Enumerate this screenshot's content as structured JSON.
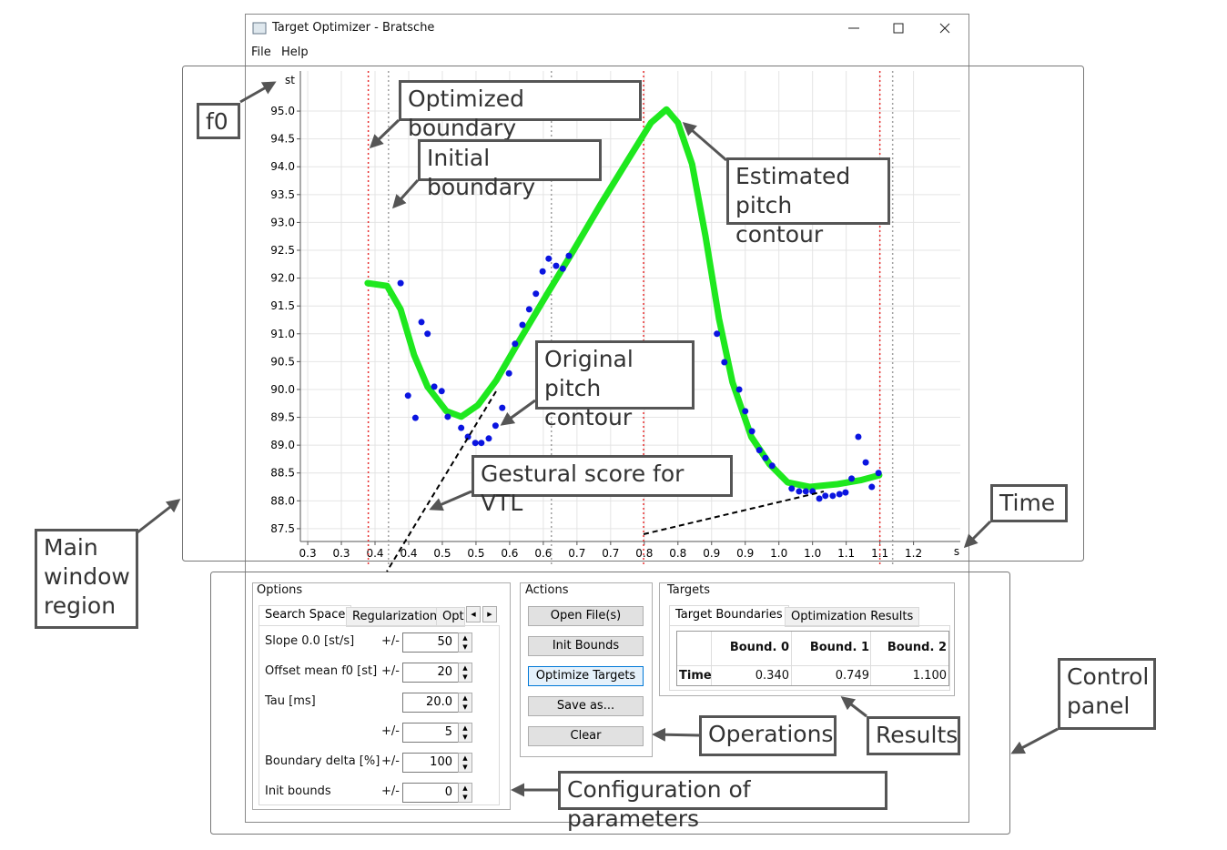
{
  "window": {
    "title": "Target Optimizer - Bratsche",
    "menu": [
      "File",
      "Help"
    ]
  },
  "plot": {
    "y_unit": "st",
    "x_unit": "s",
    "xlim": [
      0.2391,
      1.2195
    ],
    "ylim": [
      87.27,
      95.72
    ],
    "xticks": [
      {
        "value": 0.25,
        "label": "0.3"
      },
      0.3,
      {
        "value": 0.35,
        "label": "0.4"
      },
      0.4,
      {
        "value": 0.45,
        "label": "0.5"
      },
      0.5,
      {
        "value": 0.55,
        "label": "0.6"
      },
      0.6,
      {
        "value": 0.65,
        "label": "0.7"
      },
      0.7,
      {
        "value": 0.75,
        "label": "0.8"
      },
      0.8,
      {
        "value": 0.85,
        "label": "0.9"
      },
      0.9,
      {
        "value": 0.95,
        "label": "1.0"
      },
      {
        "value": 1.0,
        "label": "1.0"
      },
      {
        "value": 1.05,
        "label": "1.1"
      },
      1.1,
      {
        "value": 1.15,
        "label": "1.2"
      }
    ],
    "yticks": [
      87.5,
      {
        "value": 88,
        "label": "88.0"
      },
      88.5,
      {
        "value": 89,
        "label": "89.0"
      },
      89.5,
      {
        "value": 90,
        "label": "90.0"
      },
      90.5,
      {
        "value": 91,
        "label": "91.0"
      },
      91.5,
      {
        "value": 92,
        "label": "92.0"
      },
      92.5,
      {
        "value": 93,
        "label": "93.0"
      },
      93.5,
      {
        "value": 94,
        "label": "94.0"
      },
      94.5,
      {
        "value": 95,
        "label": "95.0"
      }
    ],
    "grid": true,
    "initial_boundaries": [
      0.37,
      0.612,
      1.119
    ],
    "optimized_boundaries": [
      0.34,
      0.749,
      1.1
    ],
    "estimated": {
      "color": "#1ee81e",
      "t": [
        0.339,
        0.368,
        0.388,
        0.408,
        0.428,
        0.456,
        0.478,
        0.503,
        0.53,
        0.564,
        0.604,
        0.645,
        0.685,
        0.726,
        0.76,
        0.783,
        0.8,
        0.821,
        0.841,
        0.861,
        0.881,
        0.909,
        0.936,
        0.963,
        0.996,
        1.037,
        1.071,
        1.099
      ],
      "v": [
        91.91,
        91.86,
        91.44,
        90.62,
        90.05,
        89.61,
        89.51,
        89.72,
        90.16,
        90.87,
        91.68,
        92.5,
        93.32,
        94.13,
        94.79,
        95.03,
        94.79,
        94.05,
        92.75,
        91.27,
        90.13,
        89.15,
        88.66,
        88.33,
        88.25,
        88.3,
        88.37,
        88.46
      ]
    },
    "original": {
      "color": "#0a14e0",
      "t": [
        0.388,
        0.399,
        0.41,
        0.419,
        0.428,
        0.438,
        0.449,
        0.458,
        0.478,
        0.488,
        0.499,
        0.508,
        0.519,
        0.529,
        0.539,
        0.549,
        0.558,
        0.569,
        0.579,
        0.589,
        0.599,
        0.608,
        0.619,
        0.629,
        0.638,
        0.858,
        0.869,
        0.891,
        0.9,
        0.91,
        0.921,
        0.93,
        0.94,
        0.969,
        0.98,
        0.99,
        1.0,
        1.01,
        1.019,
        1.03,
        1.04,
        1.049,
        1.058,
        1.068,
        1.079,
        1.088,
        1.098
      ],
      "v": [
        91.91,
        89.89,
        89.49,
        91.21,
        91.0,
        90.05,
        89.97,
        89.51,
        89.31,
        89.15,
        89.04,
        89.04,
        89.12,
        89.35,
        89.67,
        90.29,
        90.82,
        91.16,
        91.44,
        91.72,
        92.12,
        92.35,
        92.22,
        92.17,
        92.4,
        91.0,
        90.49,
        90.0,
        89.61,
        89.25,
        88.91,
        88.77,
        88.63,
        88.22,
        88.17,
        88.17,
        88.17,
        88.04,
        88.09,
        88.09,
        88.12,
        88.15,
        88.4,
        89.15,
        88.69,
        88.25,
        88.5
      ]
    }
  },
  "options": {
    "title": "Options",
    "tabs": [
      "Search Space",
      "Regularization",
      "Opt"
    ],
    "rows": [
      {
        "label": "Slope 0.0 [st/s]",
        "pm": "+/-",
        "value": "50"
      },
      {
        "label": "Offset mean f0 [st]",
        "pm": "+/-",
        "value": "20"
      },
      {
        "label": "Tau [ms]",
        "value": "20.0"
      },
      {
        "pm": "+/-",
        "value": "5"
      },
      {
        "label": "Boundary delta [%]",
        "pm": "+/-",
        "value": "100"
      },
      {
        "label": "Init bounds",
        "pm": "+/-",
        "value": "0"
      }
    ]
  },
  "actions": {
    "title": "Actions",
    "buttons": [
      "Open File(s)",
      "Init Bounds",
      "Optimize Targets",
      "Save as...",
      "Clear"
    ]
  },
  "targets": {
    "title": "Targets",
    "tabs": [
      "Target Boundaries",
      "Optimization Results"
    ],
    "header": [
      "Bound. 0",
      "Bound. 1",
      "Bound. 2"
    ],
    "row_label": "Time",
    "values": [
      "0.340",
      "0.749",
      "1.100"
    ]
  },
  "annotations": {
    "f0": "f0",
    "optimized": "Optimized boundary",
    "initial": "Initial boundary",
    "estimated": "Estimated pitch contour",
    "original": "Original pitch contour",
    "gestural": "Gestural score for VTL",
    "time": "Time",
    "main": "Main window region",
    "control": "Control panel",
    "operations": "Operations",
    "results": "Results",
    "config": "Configuration of parameters"
  }
}
